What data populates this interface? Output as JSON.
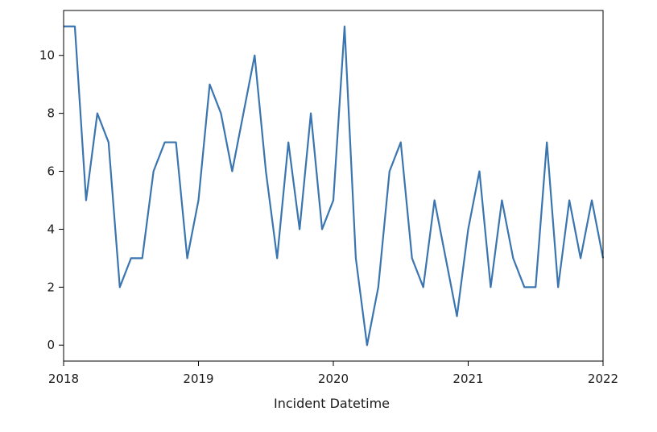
{
  "chart_data": {
    "type": "line",
    "title": "",
    "xlabel": "Incident Datetime",
    "ylabel": "",
    "xlim": [
      "2018-01",
      "2022-01"
    ],
    "ylim": [
      -0.55,
      11.55
    ],
    "grid": false,
    "legend": "none",
    "x_ticks": [
      {
        "label": "2018",
        "value": "2018-01"
      },
      {
        "label": "2019",
        "value": "2019-01"
      },
      {
        "label": "2020",
        "value": "2020-01"
      },
      {
        "label": "2021",
        "value": "2021-01"
      },
      {
        "label": "2022",
        "value": "2022-01"
      }
    ],
    "y_ticks": [
      0,
      2,
      4,
      6,
      8,
      10
    ],
    "series": [
      {
        "color": "#3a75b0",
        "x": [
          "2018-01",
          "2018-02",
          "2018-03",
          "2018-04",
          "2018-05",
          "2018-06",
          "2018-07",
          "2018-08",
          "2018-09",
          "2018-10",
          "2018-11",
          "2018-12",
          "2019-01",
          "2019-02",
          "2019-03",
          "2019-04",
          "2019-05",
          "2019-06",
          "2019-07",
          "2019-08",
          "2019-09",
          "2019-10",
          "2019-11",
          "2019-12",
          "2020-01",
          "2020-02",
          "2020-03",
          "2020-04",
          "2020-05",
          "2020-06",
          "2020-07",
          "2020-08",
          "2020-09",
          "2020-10",
          "2020-11",
          "2020-12",
          "2021-01",
          "2021-02",
          "2021-03",
          "2021-04",
          "2021-05",
          "2021-06",
          "2021-07",
          "2021-08",
          "2021-09",
          "2021-10",
          "2021-11",
          "2021-12",
          "2022-01"
        ],
        "values": [
          11,
          11,
          5,
          8,
          7,
          2,
          3,
          3,
          6,
          7,
          7,
          3,
          5,
          9,
          8,
          6,
          8,
          10,
          6,
          3,
          7,
          4,
          8,
          4,
          5,
          11,
          3,
          0,
          2,
          6,
          7,
          3,
          2,
          5,
          3,
          1,
          4,
          6,
          2,
          5,
          3,
          2,
          2,
          7,
          2,
          5,
          3,
          5,
          3
        ]
      }
    ]
  }
}
